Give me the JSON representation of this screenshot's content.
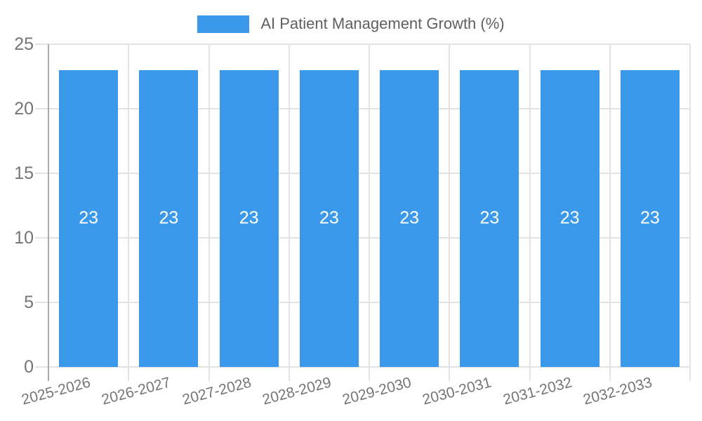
{
  "legend": {
    "label": "AI Patient Management Growth (%)"
  },
  "colors": {
    "bar": "#3B99EC",
    "grid": "#e3e3e3",
    "axis_line": "#ababab",
    "axis_label_text": "#757575",
    "legend_text": "#5f5f5f",
    "value_label_text": "#ffffff",
    "background": "#ffffff"
  },
  "chart_data": {
    "type": "bar",
    "title": "",
    "xlabel": "",
    "ylabel": "",
    "categories": [
      "2025-2026",
      "2026-2027",
      "2027-2028",
      "2028-2029",
      "2029-2030",
      "2030-2031",
      "2031-2032",
      "2032-2033"
    ],
    "values": [
      23,
      23,
      23,
      23,
      23,
      23,
      23,
      23
    ],
    "bar_labels": [
      "23",
      "23",
      "23",
      "23",
      "23",
      "23",
      "23",
      "23"
    ],
    "series_name": "AI Patient Management Growth (%)",
    "ylim": [
      0,
      25
    ],
    "yticks": [
      0,
      5,
      10,
      15,
      20,
      25
    ],
    "grid": true,
    "legend_position": "top-center"
  }
}
